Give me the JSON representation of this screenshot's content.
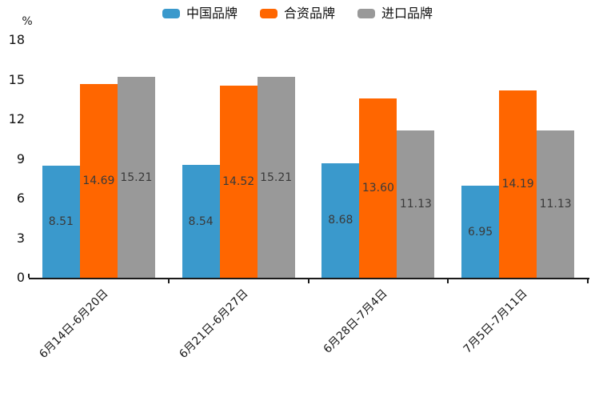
{
  "chart_data": {
    "type": "bar",
    "title": "",
    "unit_label": "%",
    "categories": [
      "6月14日-6月20日",
      "6月21日-6月27日",
      "6月28日-7月4日",
      "7月5日-7月11日"
    ],
    "series": [
      {
        "name": "中国品牌",
        "color": "#3A99CC",
        "values": [
          8.51,
          8.54,
          8.68,
          6.95
        ]
      },
      {
        "name": "合资品牌",
        "color": "#FF6600",
        "values": [
          14.69,
          14.52,
          13.6,
          14.19
        ]
      },
      {
        "name": "进口品牌",
        "color": "#999999",
        "values": [
          15.21,
          15.21,
          11.13,
          11.13
        ]
      }
    ],
    "value_label_decimals": 2,
    "value_label_color": "#3A3A3A",
    "yticks": [
      0,
      3,
      6,
      9,
      12,
      15,
      18
    ],
    "ylim": [
      0,
      18
    ],
    "grid": false,
    "legend_position": "top",
    "x_label_rotation_deg": 45,
    "axis_color": "#1A1A1A",
    "background_color": "#FFFFFF"
  }
}
